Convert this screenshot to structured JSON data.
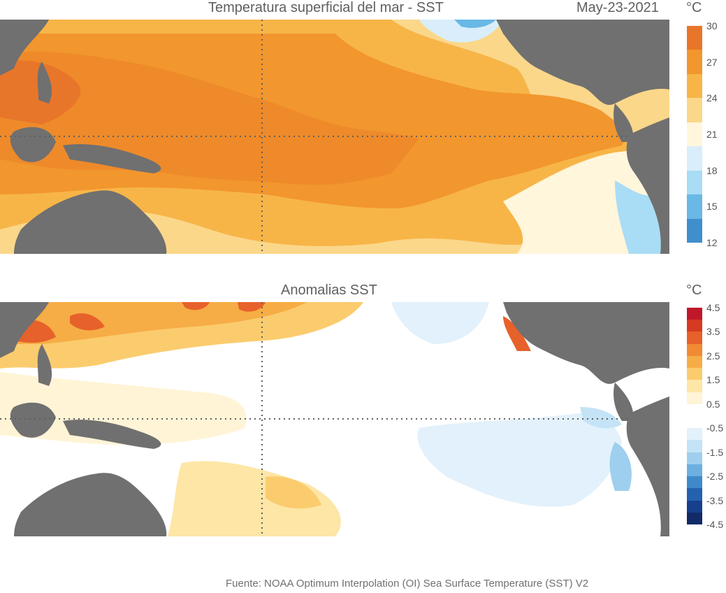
{
  "top_panel": {
    "title": "Temperatura superficial del mar - SST",
    "date": "May-23-2021",
    "unit": "°C",
    "colorbar": {
      "labels": [
        "30",
        "27",
        "24",
        "21",
        "18",
        "15",
        "12"
      ],
      "colors": [
        "#e8762a",
        "#f2962e",
        "#f7b548",
        "#fbd78a",
        "#fff6dc",
        "#d9eefa",
        "#a9dcf5",
        "#6ab8e6",
        "#3f8fcd"
      ]
    }
  },
  "bottom_panel": {
    "title": "Anomalias SST",
    "unit": "°C",
    "colorbar": {
      "labels": [
        "4.5",
        "3.5",
        "2.5",
        "1.5",
        "0.5",
        "-0.5",
        "-1.5",
        "-2.5",
        "-3.5",
        "-4.5"
      ],
      "colors": [
        "#c0182a",
        "#d63a22",
        "#e7612b",
        "#f08a33",
        "#f6ad45",
        "#fbcc6e",
        "#fde6a6",
        "#fff4d6",
        "#ffffff",
        "#ffffff",
        "#e2f1fb",
        "#c4e3f6",
        "#9fcfee",
        "#6cb0e1",
        "#3f89cb",
        "#2462ae",
        "#17408c",
        "#122a66"
      ]
    }
  },
  "footer": "Fuente: NOAA Optimum Interpolation (OI) Sea Surface Temperature (SST) V2"
}
